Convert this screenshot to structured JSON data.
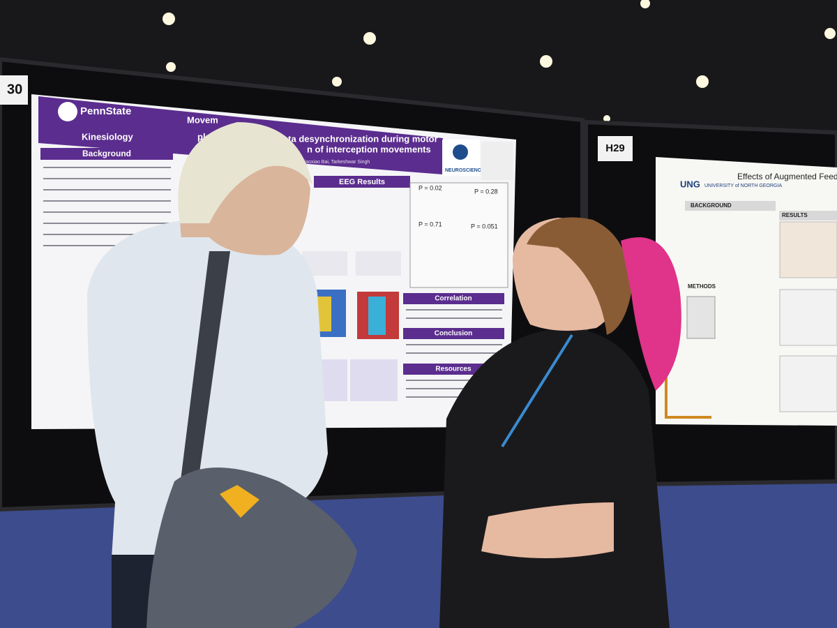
{
  "booth_labels": [
    "30",
    "H29"
  ],
  "left_poster": {
    "brand": "PennState",
    "department": "Kinesiology",
    "title_lines": [
      "Movem",
      "beta desynchronization during motor",
      "pla",
      "n of interception movements"
    ],
    "authors": "Xiaoxiao Bai, Tarkeshwar Singh",
    "logo": "NEUROSCIENCE",
    "sections": [
      "Background",
      "EEG Results",
      "Correlation",
      "Conclusion",
      "Resources"
    ],
    "stats": [
      "P = 0.02",
      "P = 0.28",
      "P = 0.71",
      "P = 0.051"
    ]
  },
  "right_poster": {
    "brand": "UNG",
    "university": "UNIVERSITY of NORTH GEORGIA",
    "title": "Effects of Augmented Feedback on H",
    "sections": [
      "BACKGROUND",
      "RESULTS",
      "METHODS"
    ]
  }
}
